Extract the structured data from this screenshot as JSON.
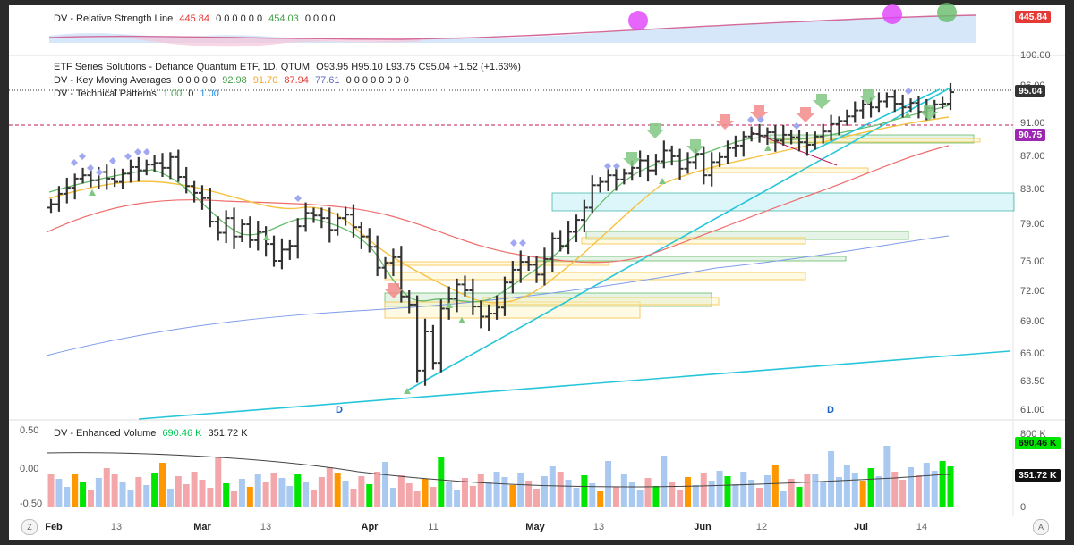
{
  "rsl_pane": {
    "title": "DV - Relative Strength Line",
    "value1": "445.84",
    "zeros1": "0 0 0 0 0 0",
    "value2": "454.03",
    "zeros2": "0 0 0 0",
    "price_tag": "445.84",
    "colors": {
      "value1": "#e53935",
      "value2": "#43a047",
      "tag": "#e53935"
    }
  },
  "main_pane": {
    "title": "ETF Series Solutions - Defiance Quantum ETF, 1D, QTUM",
    "ohlc": "O93.95  H95.10  L93.75  C95.04  +1.52 (+1.63%)",
    "kma_label": "DV - Key Moving Averages",
    "kma_zeros": "0 0 0 0 0",
    "kma_values": [
      "92.98",
      "91.70",
      "87.94",
      "77.61"
    ],
    "kma_colors": [
      "#43a047",
      "#f5a623",
      "#e53935",
      "#5c6bc0"
    ],
    "kma_trailing": "0 0 0 0 0 0 0 0",
    "tp_label": "DV - Technical Patterns",
    "tp_values": [
      "1.00",
      "0",
      "1.00"
    ],
    "price_tag_close": "95.04",
    "price_tag_level": "90.75",
    "colors": {
      "close_tag": "#333333",
      "level_tag": "#9c27b0"
    }
  },
  "volume_pane": {
    "title": "DV - Enhanced Volume",
    "value1": "690.46 K",
    "value2": "351.72 K",
    "tag1": "690.46 K",
    "tag2": "351.72 K",
    "left_ticks": [
      "0.50",
      "0.00",
      "-0.50"
    ],
    "right_ticks": [
      "800 K",
      "0"
    ],
    "colors": {
      "up": "#00e600",
      "down": "#f4a7aa",
      "neutral": "#a9c9f0",
      "orange": "#ff9800"
    }
  },
  "x_axis": {
    "labels": [
      "Feb",
      "13",
      "Mar",
      "13",
      "Apr",
      "11",
      "May",
      "13",
      "Jun",
      "12",
      "Jul",
      "14"
    ],
    "bold": [
      true,
      false,
      true,
      false,
      true,
      false,
      true,
      false,
      true,
      false,
      true,
      false
    ],
    "left_button": "Z",
    "right_button": "A"
  },
  "chart_data": {
    "type": "candlestick",
    "title": "ETF Series Solutions - Defiance Quantum ETF, 1D, QTUM",
    "y_ticks": [
      "100.00",
      "96.00",
      "91.00",
      "87.00",
      "83.00",
      "79.00",
      "75.00",
      "72.00",
      "69.00",
      "66.00",
      "63.50",
      "61.00"
    ],
    "ylim": [
      61,
      100
    ],
    "closes": [
      81.2,
      82.4,
      83.1,
      84.2,
      84.6,
      84.0,
      85.0,
      84.2,
      83.8,
      84.8,
      85.6,
      85.2,
      85.9,
      86.1,
      85.5,
      86.8,
      84.4,
      83.3,
      82.5,
      81.9,
      79.2,
      78.0,
      79.6,
      77.6,
      78.9,
      77.2,
      78.1,
      76.8,
      75.0,
      76.2,
      76.6,
      78.7,
      80.2,
      79.9,
      79.6,
      78.3,
      79.6,
      80.0,
      78.6,
      77.6,
      76.5,
      74.3,
      74.8,
      75.4,
      71.4,
      70.6,
      64.4,
      68.0,
      65.1,
      70.2,
      71.2,
      72.6,
      72.0,
      70.4,
      69.4,
      69.7,
      70.3,
      72.8,
      74.1,
      74.9,
      74.6,
      73.6,
      75.2,
      77.4,
      76.6,
      78.1,
      79.4,
      80.8,
      83.4,
      83.8,
      84.6,
      84.1,
      84.8,
      85.5,
      86.4,
      85.2,
      86.3,
      87.6,
      86.9,
      85.4,
      86.2,
      87.2,
      84.6,
      86.2,
      86.8,
      87.9,
      88.2,
      89.3,
      89.6,
      89.4,
      89.8,
      88.8,
      89.5,
      89.2,
      88.6,
      88.3,
      89.3,
      89.9,
      90.8,
      91.2,
      91.8,
      92.6,
      93.4,
      93.0,
      93.8,
      94.4,
      93.5,
      93.0,
      93.6,
      92.4,
      92.9,
      93.4,
      93.5,
      95.04
    ],
    "ma_values": {
      "fast": 92.98,
      "mid": 91.7,
      "slow": 87.94,
      "long": 77.61
    },
    "level_line": 90.75,
    "close": 95.04,
    "annotations": [
      "D",
      "D"
    ]
  }
}
